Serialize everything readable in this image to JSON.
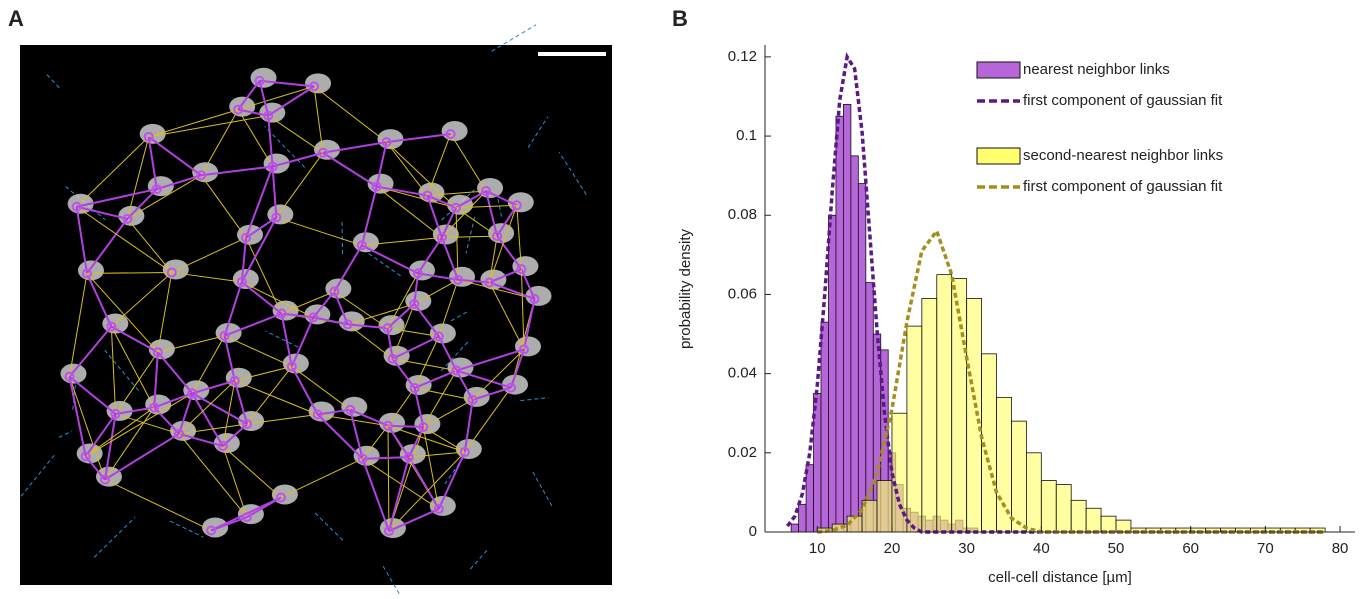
{
  "panel_labels": [
    "A",
    "B"
  ],
  "chart_data": {
    "type": "histogram",
    "xlabel": "cell-cell distance [µm]",
    "ylabel": "probability density",
    "xlim": [
      3,
      82
    ],
    "ylim": [
      0,
      0.123
    ],
    "xticks": [
      10,
      20,
      30,
      40,
      50,
      60,
      70,
      80
    ],
    "yticks": [
      0,
      0.02,
      0.04,
      0.06,
      0.08,
      0.1,
      0.12
    ],
    "legend": "upper right",
    "series": [
      {
        "name": "nearest neighbor links",
        "type": "histogram",
        "color": "#b666d8",
        "bins": [
          6.5,
          7.5,
          8.5,
          9.5,
          10.5,
          11.5,
          12.5,
          13.5,
          14.5,
          15.5,
          16.5,
          17.5,
          18.5,
          19.5,
          20.5,
          21.5,
          22.5,
          23.5,
          24.5,
          25.5,
          26.5,
          27.5,
          28.5,
          29.5,
          30.5,
          31.5
        ],
        "values": [
          0.002,
          0.007,
          0.017,
          0.035,
          0.053,
          0.08,
          0.105,
          0.108,
          0.095,
          0.088,
          0.063,
          0.05,
          0.046,
          0.02,
          0.012,
          0.006,
          0.005,
          0.004,
          0.003,
          0.004,
          0.003,
          0.002,
          0.003,
          0.001,
          0.001
        ]
      },
      {
        "name": "first component of gaussian fit",
        "type": "line",
        "color": "#5a1a86",
        "x": [
          6,
          7,
          8,
          9,
          10,
          11,
          12,
          13,
          14,
          15,
          16,
          17,
          18,
          19,
          20,
          21,
          22,
          23,
          24,
          78
        ],
        "values": [
          0.0015,
          0.004,
          0.0096,
          0.02,
          0.037,
          0.06,
          0.086,
          0.109,
          0.12,
          0.117,
          0.101,
          0.076,
          0.051,
          0.03,
          0.015,
          0.007,
          0.003,
          0.001,
          0,
          0
        ]
      },
      {
        "name": "second-nearest neighbor links",
        "type": "histogram",
        "color": "#ffff70",
        "bins": [
          10,
          12,
          14,
          16,
          18,
          20,
          22,
          24,
          26,
          28,
          30,
          32,
          34,
          36,
          38,
          40,
          42,
          44,
          46,
          48,
          50,
          52,
          54,
          56,
          58,
          60,
          62,
          64,
          66,
          68,
          70,
          72,
          74,
          76,
          78
        ],
        "values": [
          0.001,
          0.002,
          0.004,
          0.008,
          0.013,
          0.03,
          0.052,
          0.059,
          0.065,
          0.064,
          0.059,
          0.045,
          0.034,
          0.028,
          0.02,
          0.013,
          0.012,
          0.008,
          0.006,
          0.004,
          0.003,
          0.001,
          0.001,
          0.001,
          0.001,
          0.001,
          0.001,
          0.001,
          0.001,
          0.001,
          0.001,
          0.001,
          0.001,
          0.001
        ]
      },
      {
        "name": "first component of gaussian fit",
        "type": "line",
        "color": "#a48e1e",
        "x": [
          10,
          12,
          14,
          16,
          18,
          20,
          22,
          24,
          26,
          28,
          30,
          32,
          34,
          36,
          38,
          40,
          78
        ],
        "values": [
          0,
          0.0004,
          0.0017,
          0.0056,
          0.0147,
          0.031,
          0.053,
          0.071,
          0.076,
          0.065,
          0.044,
          0.024,
          0.01,
          0.0035,
          0.001,
          0,
          0
        ]
      }
    ]
  }
}
